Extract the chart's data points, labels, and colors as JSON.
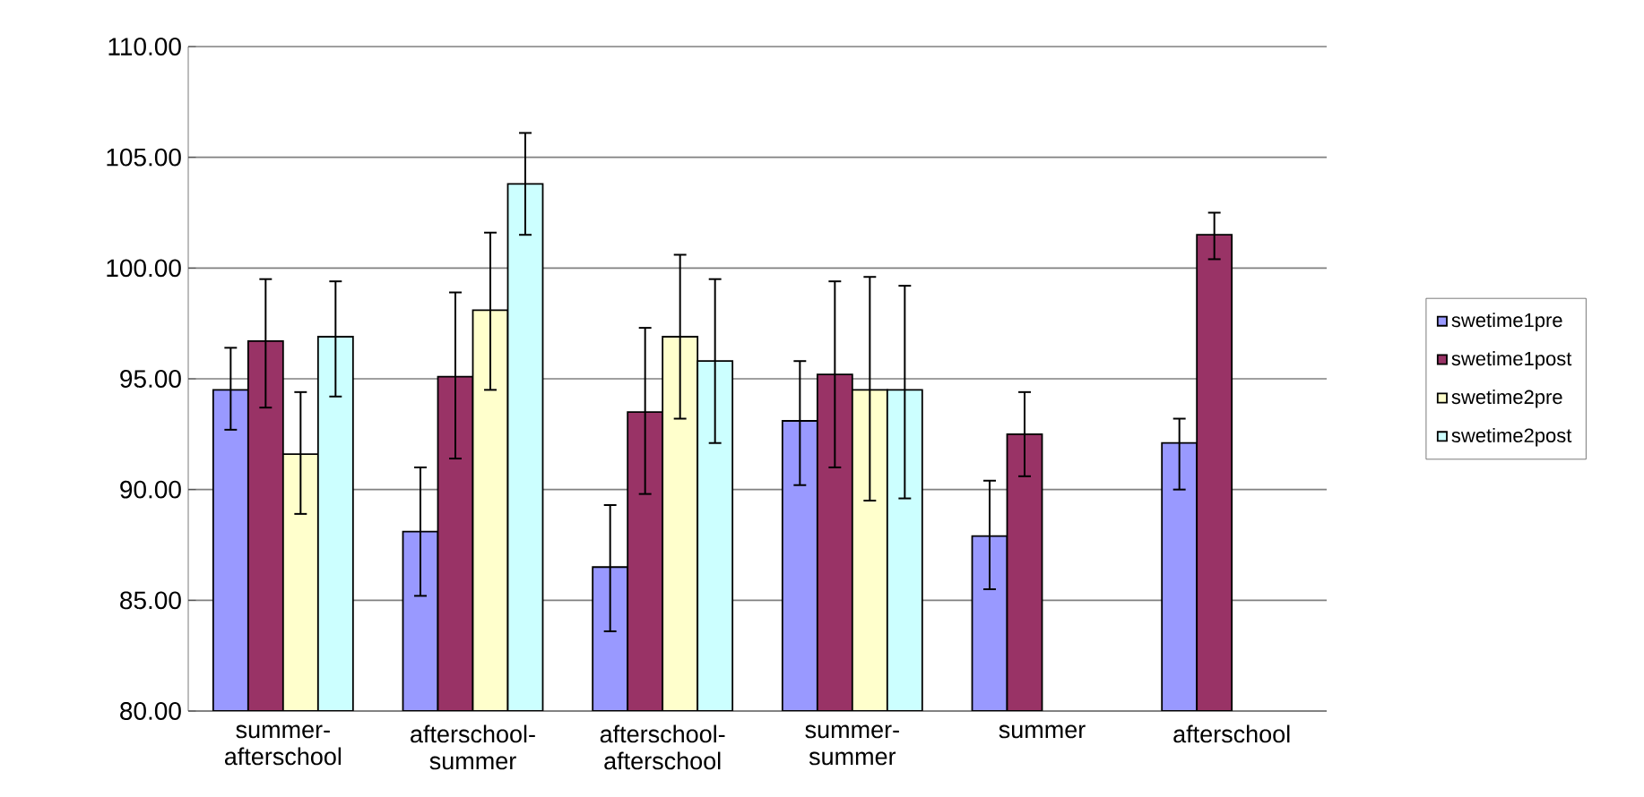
{
  "chart_data": {
    "type": "bar",
    "categories": [
      "summer-afterschool",
      "afterschool-summer",
      "afterschool-afterschool",
      "summer-summer",
      "summer",
      "afterschool"
    ],
    "series": [
      {
        "name": "swetime1pre",
        "color": "#9999ff",
        "values": [
          94.5,
          88.1,
          86.5,
          93.1,
          87.9,
          92.1
        ],
        "errors": [
          [
            92.7,
            96.4
          ],
          [
            85.2,
            91.0
          ],
          [
            83.6,
            89.3
          ],
          [
            90.2,
            95.8
          ],
          [
            85.5,
            90.4
          ],
          [
            90.0,
            93.2
          ]
        ]
      },
      {
        "name": "swetime1post",
        "color": "#993366",
        "values": [
          96.7,
          95.1,
          93.5,
          95.2,
          92.5,
          101.5
        ],
        "errors": [
          [
            93.7,
            99.5
          ],
          [
            91.4,
            98.9
          ],
          [
            89.8,
            97.3
          ],
          [
            91.0,
            99.4
          ],
          [
            90.6,
            94.4
          ],
          [
            100.4,
            102.5
          ]
        ]
      },
      {
        "name": "swetime2pre",
        "color": "#ffffcc",
        "values": [
          91.6,
          98.1,
          96.9,
          94.5,
          null,
          null
        ],
        "errors": [
          [
            88.9,
            94.4
          ],
          [
            94.5,
            101.6
          ],
          [
            93.2,
            100.6
          ],
          [
            89.5,
            99.6
          ],
          null,
          null
        ]
      },
      {
        "name": "swetime2post",
        "color": "#ccffff",
        "values": [
          96.9,
          103.8,
          95.8,
          94.5,
          null,
          null
        ],
        "errors": [
          [
            94.2,
            99.4
          ],
          [
            101.5,
            106.1
          ],
          [
            92.1,
            99.5
          ],
          [
            89.6,
            99.2
          ],
          null,
          null
        ]
      }
    ],
    "ylim": [
      80,
      110
    ],
    "yticks": [
      {
        "value": 80,
        "label": "80.00"
      },
      {
        "value": 85,
        "label": "85.00"
      },
      {
        "value": 90,
        "label": "90.00"
      },
      {
        "value": 95,
        "label": "95.00"
      },
      {
        "value": 100,
        "label": "100.00"
      },
      {
        "value": 105,
        "label": "105.00"
      },
      {
        "value": 110,
        "label": "110.00"
      }
    ],
    "grid": "y",
    "legend": "right"
  }
}
